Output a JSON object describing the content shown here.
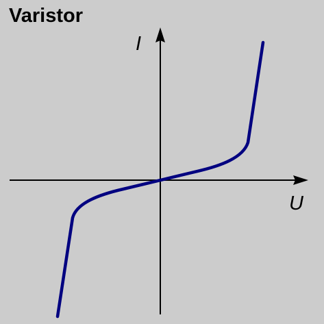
{
  "title": "Varistor",
  "axes": {
    "x_label": "U",
    "y_label": "I"
  },
  "colors": {
    "background": "#cccccc",
    "axis": "#000000",
    "curve": "#000080"
  },
  "chart_data": {
    "type": "line",
    "xlabel": "U",
    "ylabel": "I",
    "series": [
      {
        "values": [
          [
            -1.0,
            -1.0
          ],
          [
            -0.96,
            -0.6
          ],
          [
            -0.92,
            -0.25
          ],
          [
            -0.85,
            -0.16
          ],
          [
            -0.5,
            -0.08
          ],
          [
            0.0,
            0.0
          ],
          [
            0.5,
            0.08
          ],
          [
            0.85,
            0.16
          ],
          [
            0.92,
            0.25
          ],
          [
            0.96,
            0.6
          ],
          [
            1.0,
            1.0
          ]
        ]
      }
    ]
  }
}
